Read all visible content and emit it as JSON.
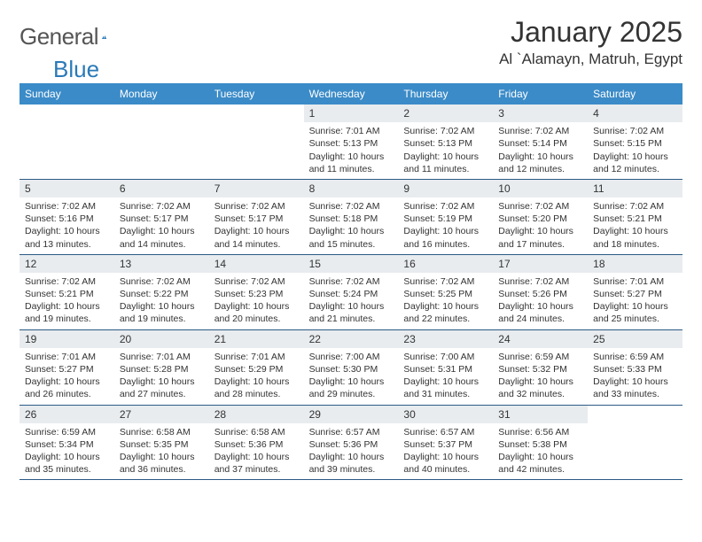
{
  "logo": {
    "text1": "General",
    "text2": "Blue"
  },
  "title": "January 2025",
  "location": "Al `Alamayn, Matruh, Egypt",
  "colors": {
    "header_bg": "#3b8bc8",
    "header_text": "#ffffff",
    "daybar_bg": "#e8ecef",
    "week_border": "#2c5a85",
    "text": "#333333",
    "logo_gray": "#555555",
    "logo_blue": "#2a7ab8",
    "page_bg": "#ffffff"
  },
  "typography": {
    "title_fontsize": 32,
    "location_fontsize": 17,
    "weekday_fontsize": 12,
    "daynum_fontsize": 12,
    "body_fontsize": 10.5,
    "font_family": "Arial"
  },
  "layout": {
    "columns": 7,
    "rows": 5,
    "blank_leading_cells": 3,
    "blank_trailing_cells": 1
  },
  "weekdays": [
    "Sunday",
    "Monday",
    "Tuesday",
    "Wednesday",
    "Thursday",
    "Friday",
    "Saturday"
  ],
  "strings": {
    "sunrise_prefix": "Sunrise: ",
    "sunset_prefix": "Sunset: ",
    "daylight_prefix": "Daylight: ",
    "hours_word": " hours",
    "and_word": "and ",
    "minutes_suffix": " minutes."
  },
  "days": [
    {
      "n": "1",
      "sr": "7:01 AM",
      "ss": "5:13 PM",
      "dh": "10",
      "dm": "11"
    },
    {
      "n": "2",
      "sr": "7:02 AM",
      "ss": "5:13 PM",
      "dh": "10",
      "dm": "11"
    },
    {
      "n": "3",
      "sr": "7:02 AM",
      "ss": "5:14 PM",
      "dh": "10",
      "dm": "12"
    },
    {
      "n": "4",
      "sr": "7:02 AM",
      "ss": "5:15 PM",
      "dh": "10",
      "dm": "12"
    },
    {
      "n": "5",
      "sr": "7:02 AM",
      "ss": "5:16 PM",
      "dh": "10",
      "dm": "13"
    },
    {
      "n": "6",
      "sr": "7:02 AM",
      "ss": "5:17 PM",
      "dh": "10",
      "dm": "14"
    },
    {
      "n": "7",
      "sr": "7:02 AM",
      "ss": "5:17 PM",
      "dh": "10",
      "dm": "14"
    },
    {
      "n": "8",
      "sr": "7:02 AM",
      "ss": "5:18 PM",
      "dh": "10",
      "dm": "15"
    },
    {
      "n": "9",
      "sr": "7:02 AM",
      "ss": "5:19 PM",
      "dh": "10",
      "dm": "16"
    },
    {
      "n": "10",
      "sr": "7:02 AM",
      "ss": "5:20 PM",
      "dh": "10",
      "dm": "17"
    },
    {
      "n": "11",
      "sr": "7:02 AM",
      "ss": "5:21 PM",
      "dh": "10",
      "dm": "18"
    },
    {
      "n": "12",
      "sr": "7:02 AM",
      "ss": "5:21 PM",
      "dh": "10",
      "dm": "19"
    },
    {
      "n": "13",
      "sr": "7:02 AM",
      "ss": "5:22 PM",
      "dh": "10",
      "dm": "19"
    },
    {
      "n": "14",
      "sr": "7:02 AM",
      "ss": "5:23 PM",
      "dh": "10",
      "dm": "20"
    },
    {
      "n": "15",
      "sr": "7:02 AM",
      "ss": "5:24 PM",
      "dh": "10",
      "dm": "21"
    },
    {
      "n": "16",
      "sr": "7:02 AM",
      "ss": "5:25 PM",
      "dh": "10",
      "dm": "22"
    },
    {
      "n": "17",
      "sr": "7:02 AM",
      "ss": "5:26 PM",
      "dh": "10",
      "dm": "24"
    },
    {
      "n": "18",
      "sr": "7:01 AM",
      "ss": "5:27 PM",
      "dh": "10",
      "dm": "25"
    },
    {
      "n": "19",
      "sr": "7:01 AM",
      "ss": "5:27 PM",
      "dh": "10",
      "dm": "26"
    },
    {
      "n": "20",
      "sr": "7:01 AM",
      "ss": "5:28 PM",
      "dh": "10",
      "dm": "27"
    },
    {
      "n": "21",
      "sr": "7:01 AM",
      "ss": "5:29 PM",
      "dh": "10",
      "dm": "28"
    },
    {
      "n": "22",
      "sr": "7:00 AM",
      "ss": "5:30 PM",
      "dh": "10",
      "dm": "29"
    },
    {
      "n": "23",
      "sr": "7:00 AM",
      "ss": "5:31 PM",
      "dh": "10",
      "dm": "31"
    },
    {
      "n": "24",
      "sr": "6:59 AM",
      "ss": "5:32 PM",
      "dh": "10",
      "dm": "32"
    },
    {
      "n": "25",
      "sr": "6:59 AM",
      "ss": "5:33 PM",
      "dh": "10",
      "dm": "33"
    },
    {
      "n": "26",
      "sr": "6:59 AM",
      "ss": "5:34 PM",
      "dh": "10",
      "dm": "35"
    },
    {
      "n": "27",
      "sr": "6:58 AM",
      "ss": "5:35 PM",
      "dh": "10",
      "dm": "36"
    },
    {
      "n": "28",
      "sr": "6:58 AM",
      "ss": "5:36 PM",
      "dh": "10",
      "dm": "37"
    },
    {
      "n": "29",
      "sr": "6:57 AM",
      "ss": "5:36 PM",
      "dh": "10",
      "dm": "39"
    },
    {
      "n": "30",
      "sr": "6:57 AM",
      "ss": "5:37 PM",
      "dh": "10",
      "dm": "40"
    },
    {
      "n": "31",
      "sr": "6:56 AM",
      "ss": "5:38 PM",
      "dh": "10",
      "dm": "42"
    }
  ]
}
